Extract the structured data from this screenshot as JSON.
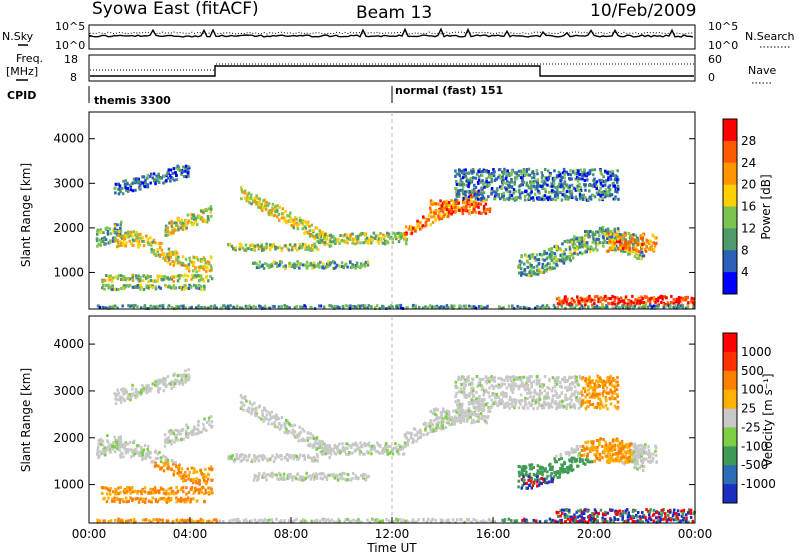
{
  "header": {
    "title": "Syowa East (fitACF)",
    "beam": "Beam 13",
    "date": "10/Feb/2009"
  },
  "top_panel": {
    "nsky_label": "N.Sky",
    "nsky_ticks": [
      "10^5",
      "10^0"
    ],
    "nsearch_label": "N.Search",
    "nsearch_ticks": [
      "10^5",
      "10^0"
    ],
    "freq_label_1": "Freq.",
    "freq_label_2": "[MHz]",
    "freq_ticks": [
      "18",
      "8"
    ],
    "nave_label": "Nave",
    "nave_ticks": [
      "60",
      "0"
    ],
    "cpid_label": "CPID",
    "cpid_modes": [
      {
        "name": "themis 3300",
        "start_hour": 0
      },
      {
        "name": "normal (fast) 151",
        "start_hour": 12
      }
    ]
  },
  "chart_data": [
    {
      "type": "heatmap",
      "ylabel": "Slant Range [km]",
      "xlabel": "",
      "ylim": [
        180,
        4600
      ],
      "xlim": [
        0,
        24
      ],
      "yticks": [
        "1000",
        "2000",
        "3000",
        "4000"
      ],
      "colorbar": {
        "label": "Power [dB]",
        "ticks": [
          "28",
          "24",
          "20",
          "16",
          "12",
          "8",
          "4"
        ],
        "colors": [
          "#0000ff",
          "#2b5fb8",
          "#4f9a6a",
          "#7bc452",
          "#ffd000",
          "#ff9500",
          "#ff5a00",
          "#ff0000"
        ]
      }
    },
    {
      "type": "heatmap",
      "ylabel": "Slant Range [km]",
      "xlabel": "Time UT",
      "ylim": [
        180,
        4600
      ],
      "xlim": [
        0,
        24
      ],
      "yticks": [
        "1000",
        "2000",
        "3000",
        "4000"
      ],
      "xticks": [
        "00:00",
        "04:00",
        "08:00",
        "12:00",
        "16:00",
        "20:00",
        "00:00"
      ],
      "colorbar": {
        "label": "Velocity [m s⁻¹]",
        "ticks": [
          "1000",
          "500",
          "100",
          "25",
          "-25",
          "-100",
          "-500",
          "-1000"
        ],
        "colors": [
          "#1a2fbf",
          "#2c6db5",
          "#3f9a55",
          "#7ccf44",
          "#c8c8c8",
          "#ffb000",
          "#ff8000",
          "#ff3000",
          "#ff0000"
        ]
      }
    }
  ]
}
